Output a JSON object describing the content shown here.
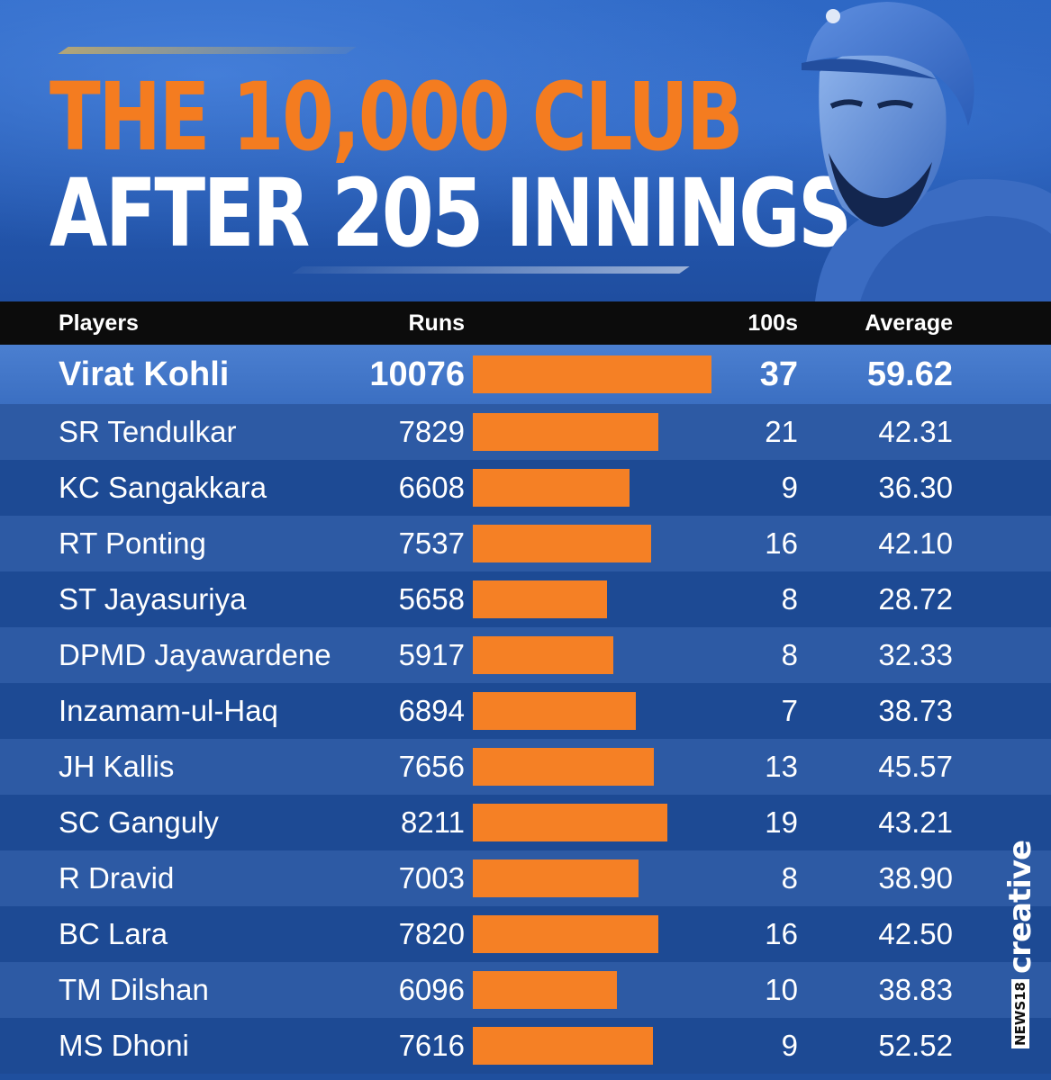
{
  "title": {
    "line1": "THE 10,000 CLUB",
    "line2": "AFTER 205 INNINGS"
  },
  "headers": {
    "players": "Players",
    "runs": "Runs",
    "hundreds": "100s",
    "average": "Average"
  },
  "brand": {
    "news": "NEWS18",
    "creative": "creative"
  },
  "colors": {
    "bar": "#f58025",
    "title_orange": "#f47c20",
    "header_bg": "#0c0c0c"
  },
  "chart_data": {
    "type": "table",
    "title": "THE 10,000 CLUB AFTER 205 INNINGS",
    "columns": [
      "Players",
      "Runs",
      "100s",
      "Average"
    ],
    "bar_column": "Runs",
    "xlim": [
      0,
      10076
    ],
    "rows": [
      {
        "player": "Virat Kohli",
        "runs": "10076",
        "hundreds": "37",
        "average": "59.62"
      },
      {
        "player": "SR Tendulkar",
        "runs": "7829",
        "hundreds": "21",
        "average": "42.31"
      },
      {
        "player": "KC Sangakkara",
        "runs": "6608",
        "hundreds": "9",
        "average": "36.30"
      },
      {
        "player": "RT Ponting",
        "runs": "7537",
        "hundreds": "16",
        "average": "42.10"
      },
      {
        "player": "ST Jayasuriya",
        "runs": "5658",
        "hundreds": "8",
        "average": "28.72"
      },
      {
        "player": "DPMD Jayawardene",
        "runs": "5917",
        "hundreds": "8",
        "average": "32.33"
      },
      {
        "player": "Inzamam-ul-Haq",
        "runs": "6894",
        "hundreds": "7",
        "average": "38.73"
      },
      {
        "player": "JH Kallis",
        "runs": "7656",
        "hundreds": "13",
        "average": "45.57"
      },
      {
        "player": "SC Ganguly",
        "runs": "8211",
        "hundreds": "19",
        "average": "43.21"
      },
      {
        "player": "R Dravid",
        "runs": "7003",
        "hundreds": "8",
        "average": "38.90"
      },
      {
        "player": "BC Lara",
        "runs": "7820",
        "hundreds": "16",
        "average": "42.50"
      },
      {
        "player": "TM Dilshan",
        "runs": "6096",
        "hundreds": "10",
        "average": "38.83"
      },
      {
        "player": "MS Dhoni",
        "runs": "7616",
        "hundreds": "9",
        "average": "52.52"
      }
    ]
  }
}
